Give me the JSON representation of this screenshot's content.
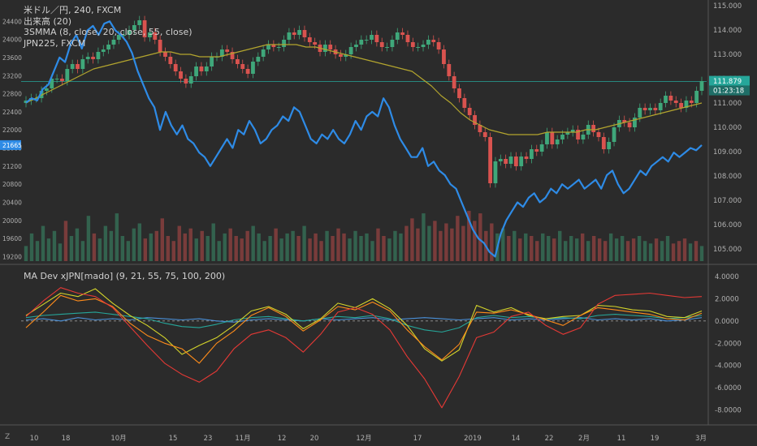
{
  "legend": {
    "symbol": "米ドル／円, 240, FXCM",
    "volume": "出来高 (20)",
    "smma": "3SMMA (8, close, 20, close, 55, close)",
    "index": "JPN225, FXCM"
  },
  "sub_legend": "MA Dev xJPN[mado] (9, 21, 55, 75, 100, 200)",
  "corner": "Z",
  "colors": {
    "background": "#2b2b2b",
    "divider": "#555555",
    "up_candle": "#3fa77a",
    "down_candle": "#d9534f",
    "jpn225_line": "#2e8be6",
    "smma_slow": "#b3a52e",
    "smma_fast": "#c8b43c",
    "hline": "#26a69a",
    "dev_red": "#e53935",
    "dev_orange": "#ff8c1a",
    "dev_yellow": "#d4d42a",
    "dev_teal": "#26a69a",
    "dev_blue": "#4a90d9"
  },
  "chart_data": [
    {
      "type": "line",
      "title": "米ドル／円, 240, FXCM",
      "x_tick_labels": [
        "10",
        "18",
        "10月",
        "15",
        "23",
        "11月",
        "12",
        "20",
        "12月",
        "17",
        "2019",
        "14",
        "22",
        "2月",
        "11",
        "19",
        "3月"
      ],
      "y_right_ticks": [
        115.0,
        114.0,
        113.0,
        112.0,
        111.0,
        110.0,
        109.0,
        108.0,
        107.0,
        106.0,
        105.0
      ],
      "y_right_range": [
        104.5,
        115.1
      ],
      "y_left_ticks": [
        24400,
        24000,
        23600,
        23200,
        22800,
        22400,
        22000,
        21600,
        21200,
        20800,
        20400,
        20000,
        19600,
        19200
      ],
      "y_left_range": [
        19100,
        24800
      ],
      "last_price_label": "111.879",
      "countdown_label": "01:23:18",
      "jpn225_label": "21665",
      "series": [
        {
          "name": "米ドル／円",
          "style": "candles",
          "axis": "right",
          "values": [
            111.1,
            111.2,
            111.2,
            111.5,
            111.6,
            112.0,
            112.0,
            111.9,
            112.4,
            112.6,
            112.4,
            112.8,
            112.9,
            112.8,
            113.1,
            113.2,
            113.4,
            113.6,
            113.8,
            113.8,
            114.0,
            114.2,
            114.4,
            113.7,
            113.9,
            113.6,
            113.1,
            112.9,
            112.6,
            112.3,
            112.0,
            111.8,
            112.1,
            112.5,
            112.3,
            112.5,
            112.9,
            112.9,
            113.2,
            113.1,
            112.8,
            112.6,
            112.4,
            112.2,
            112.7,
            112.9,
            113.2,
            113.4,
            113.3,
            113.3,
            113.6,
            113.9,
            113.8,
            114.0,
            113.7,
            113.5,
            113.4,
            113.1,
            113.4,
            113.2,
            113.0,
            112.9,
            113.0,
            113.3,
            113.4,
            113.6,
            113.6,
            113.8,
            113.5,
            113.3,
            113.3,
            113.6,
            113.9,
            113.8,
            113.5,
            113.3,
            113.3,
            113.4,
            113.6,
            113.5,
            113.2,
            112.6,
            112.1,
            111.6,
            111.2,
            110.8,
            110.5,
            110.1,
            109.8,
            109.6,
            107.7,
            108.6,
            108.7,
            108.5,
            108.8,
            108.4,
            108.8,
            108.7,
            109.1,
            109.0,
            109.3,
            109.8,
            109.3,
            109.5,
            109.7,
            109.8,
            109.9,
            109.5,
            109.7,
            110.1,
            109.8,
            109.6,
            109.1,
            109.4,
            110.0,
            110.3,
            110.2,
            110.0,
            110.4,
            110.8,
            110.7,
            110.8,
            110.7,
            111.0,
            111.3,
            111.1,
            111.0,
            110.8,
            111.1,
            111.0,
            111.5,
            111.9
          ]
        },
        {
          "name": "3SMMA",
          "style": "line",
          "axis": "right",
          "values": [
            111.0,
            111.2,
            111.4,
            111.6,
            111.8,
            112.0,
            112.2,
            112.4,
            112.5,
            112.6,
            112.7,
            112.8,
            112.9,
            113.0,
            113.1,
            113.1,
            113.0,
            113.0,
            112.9,
            112.9,
            112.9,
            113.0,
            113.1,
            113.2,
            113.3,
            113.4,
            113.4,
            113.4,
            113.4,
            113.3,
            113.3,
            113.2,
            113.1,
            113.0,
            112.9,
            112.8,
            112.7,
            112.6,
            112.5,
            112.4,
            112.3,
            112.0,
            111.7,
            111.3,
            111.0,
            110.6,
            110.3,
            110.1,
            109.9,
            109.8,
            109.7,
            109.7,
            109.7,
            109.7,
            109.8,
            109.8,
            109.8,
            109.8,
            109.9,
            109.9,
            110.0,
            110.1,
            110.2,
            110.3,
            110.4,
            110.5,
            110.6,
            110.7,
            110.8,
            110.9,
            111.0
          ]
        },
        {
          "name": "JPN225",
          "style": "line",
          "axis": "left",
          "values": [
            22600,
            22700,
            22650,
            22900,
            23000,
            23300,
            23600,
            23500,
            23900,
            24100,
            23800,
            24200,
            24300,
            24100,
            24350,
            24400,
            24200,
            24100,
            23950,
            23700,
            23300,
            23000,
            22700,
            22500,
            22000,
            22400,
            22100,
            21900,
            22100,
            21800,
            21700,
            21500,
            21400,
            21200,
            21400,
            21600,
            21800,
            21600,
            22000,
            21900,
            22200,
            22000,
            21700,
            21800,
            22000,
            22100,
            22300,
            22200,
            22500,
            22400,
            22100,
            21800,
            21700,
            21900,
            21800,
            22000,
            21800,
            21700,
            21900,
            22200,
            22000,
            22300,
            22400,
            22300,
            22700,
            22500,
            22100,
            21800,
            21600,
            21400,
            21400,
            21600,
            21200,
            21300,
            21100,
            21000,
            20800,
            20700,
            20400,
            20100,
            19800,
            19600,
            19500,
            19300,
            19200,
            19700,
            20000,
            20200,
            20400,
            20300,
            20500,
            20600,
            20400,
            20500,
            20700,
            20600,
            20800,
            20700,
            20800,
            20900,
            20700,
            20800,
            20900,
            20700,
            21000,
            21100,
            20800,
            20600,
            20700,
            20900,
            21100,
            21000,
            21200,
            21300,
            21400,
            21300,
            21500,
            21400,
            21500,
            21600,
            21550,
            21665
          ]
        }
      ]
    },
    {
      "type": "bar",
      "title": "出来高 (20)",
      "series": [
        {
          "name": "出来高",
          "values": [
            30,
            55,
            40,
            70,
            45,
            60,
            35,
            80,
            50,
            65,
            40,
            90,
            55,
            45,
            70,
            60,
            95,
            50,
            40,
            65,
            75,
            45,
            55,
            60,
            85,
            50,
            40,
            70,
            55,
            65,
            45,
            60,
            50,
            75,
            40,
            55,
            65,
            50,
            45,
            60,
            70,
            55,
            40,
            50,
            65,
            45,
            55,
            60,
            50,
            70,
            45,
            55,
            40,
            60,
            50,
            65,
            55,
            45,
            60,
            50,
            55,
            40,
            65,
            50,
            45,
            60,
            55,
            70,
            85,
            65,
            95,
            70,
            80,
            60,
            75,
            65,
            90,
            70,
            100,
            80,
            95,
            60,
            75,
            55,
            65,
            50,
            60,
            45,
            55,
            50,
            40,
            55,
            50,
            45,
            60,
            40,
            50,
            45,
            55,
            40,
            50,
            45,
            40,
            55,
            45,
            50,
            40,
            45,
            50,
            40,
            35,
            45,
            40,
            50,
            35,
            40,
            45,
            35,
            40,
            30
          ]
        }
      ]
    },
    {
      "type": "line",
      "title": "MA Dev xJPN[mado] (9, 21, 55, 75, 100, 200)",
      "y_ticks": [
        4.0,
        2.0,
        0.0,
        -2.0,
        -4.0,
        -6.0,
        -8.0
      ],
      "y_range": [
        -9.2,
        4.8
      ],
      "zero_line": true,
      "series": [
        {
          "name": "9",
          "color_key": "dev_blue",
          "values": [
            0.1,
            0.2,
            0.0,
            0.3,
            0.1,
            0.2,
            0.1,
            0.3,
            0.2,
            0.1,
            0.2,
            0.0,
            -0.1,
            0.1,
            0.2,
            0.1,
            0.0,
            0.2,
            0.1,
            0.2,
            0.3,
            0.1,
            0.2,
            0.3,
            0.2,
            0.1,
            0.2,
            0.3,
            0.1,
            0.2,
            0.1,
            0.2,
            0.3,
            0.1,
            0.2,
            0.1,
            0.2,
            0.0,
            0.1,
            0.3
          ]
        },
        {
          "name": "21",
          "color_key": "dev_teal",
          "values": [
            0.3,
            0.5,
            0.6,
            0.7,
            0.8,
            0.6,
            0.4,
            0.2,
            -0.2,
            -0.5,
            -0.6,
            -0.3,
            0.1,
            0.3,
            0.4,
            0.2,
            0.0,
            0.2,
            0.4,
            0.3,
            0.5,
            0.2,
            -0.4,
            -0.8,
            -1.0,
            -0.6,
            0.3,
            0.5,
            0.3,
            0.4,
            0.2,
            0.3,
            0.2,
            0.5,
            0.6,
            0.5,
            0.4,
            0.2,
            0.3,
            0.5
          ]
        },
        {
          "name": "55",
          "color_key": "dev_yellow",
          "values": [
            0.5,
            1.5,
            2.5,
            2.2,
            2.9,
            1.6,
            0.5,
            -0.4,
            -1.5,
            -3.0,
            -2.2,
            -1.5,
            -0.4,
            0.9,
            1.3,
            0.6,
            -0.7,
            0.2,
            1.6,
            1.2,
            2.0,
            1.1,
            -0.4,
            -2.5,
            -3.6,
            -2.6,
            1.4,
            0.8,
            1.2,
            0.5,
            0.2,
            0.4,
            0.5,
            1.4,
            1.3,
            1.0,
            0.9,
            0.4,
            0.3,
            0.9
          ]
        },
        {
          "name": "75",
          "color_key": "dev_orange",
          "values": [
            -0.6,
            0.8,
            2.3,
            1.8,
            2.0,
            1.3,
            -0.2,
            -1.3,
            -2.0,
            -2.5,
            -3.8,
            -2.0,
            -0.9,
            0.5,
            1.2,
            0.4,
            -0.9,
            0.1,
            1.3,
            1.0,
            1.7,
            0.9,
            -0.8,
            -2.3,
            -3.5,
            -2.1,
            0.8,
            0.7,
            1.0,
            0.6,
            0.1,
            -0.4,
            0.5,
            1.2,
            1.0,
            0.8,
            0.6,
            0.2,
            0.1,
            0.7
          ]
        },
        {
          "name": "200",
          "color_key": "dev_red",
          "values": [
            0.4,
            1.8,
            3.0,
            2.5,
            2.2,
            1.2,
            -0.5,
            -2.2,
            -3.8,
            -4.8,
            -5.5,
            -4.5,
            -2.5,
            -1.2,
            -0.8,
            -1.5,
            -2.8,
            -1.2,
            0.8,
            1.2,
            0.6,
            -0.8,
            -3.2,
            -5.2,
            -7.8,
            -5.0,
            -1.5,
            -1.0,
            0.4,
            0.8,
            -0.4,
            -1.2,
            -0.6,
            1.5,
            2.3,
            2.4,
            2.5,
            2.3,
            2.1,
            2.2
          ]
        }
      ]
    }
  ]
}
